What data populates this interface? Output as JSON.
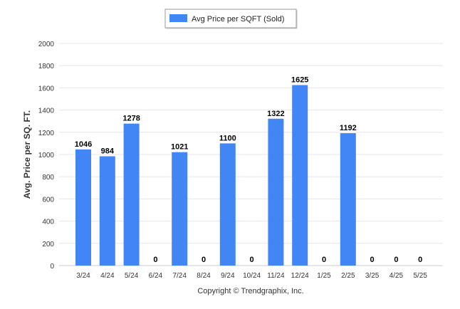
{
  "chart_data": {
    "type": "bar",
    "categories": [
      "3/24",
      "4/24",
      "5/24",
      "6/24",
      "7/24",
      "8/24",
      "9/24",
      "10/24",
      "11/24",
      "12/24",
      "1/25",
      "2/25",
      "3/25",
      "4/25",
      "5/25"
    ],
    "series": [
      {
        "name": "Avg Price per SQFT (Sold)",
        "values": [
          1046,
          984,
          1278,
          0,
          1021,
          0,
          1100,
          0,
          1322,
          1625,
          0,
          1192,
          0,
          0,
          0
        ]
      }
    ],
    "data_labels": [
      "1046",
      "984",
      "1278",
      "0",
      "1021",
      "0",
      "1100",
      "0",
      "1322",
      "1625",
      "0",
      "1192",
      "0",
      "0",
      "0"
    ],
    "ylabel": "Avg. Price per SQ. FT.",
    "ylim": [
      0,
      2000
    ],
    "yticks": [
      0,
      200,
      400,
      600,
      800,
      1000,
      1200,
      1400,
      1600,
      1800,
      2000
    ],
    "grid": true,
    "legend_position": "top-center",
    "colors": {
      "bar": "#4285f4",
      "grid": "#e6e6e6"
    }
  },
  "footer": {
    "copyright": "Copyright © Trendgraphix, Inc."
  }
}
